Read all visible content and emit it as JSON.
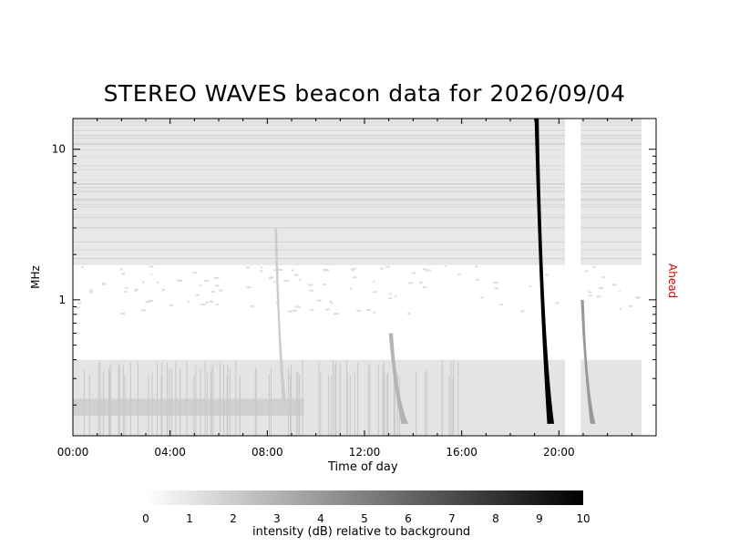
{
  "chart_data": {
    "type": "heatmap",
    "title": "STEREO WAVES beacon data for 2026/09/04",
    "xlabel": "Time of day",
    "ylabel": "MHz",
    "right_label": "Ahead",
    "right_label_color": "#cc0000",
    "x_range_hours": [
      0,
      24
    ],
    "x_ticks": [
      "00:00",
      "04:00",
      "08:00",
      "12:00",
      "16:00",
      "20:00"
    ],
    "y_scale": "log",
    "y_range_mhz": [
      0.125,
      16
    ],
    "y_ticks": [
      "1",
      "10"
    ],
    "data_gap_hours": [
      20.25,
      20.9
    ],
    "data_end_hours": 23.4,
    "bursts": [
      {
        "start_hours": 19.0,
        "end_hours": 19.8,
        "peak_db": 10,
        "freq_top_mhz": 16,
        "freq_bottom_mhz": 0.15
      },
      {
        "start_hours": 20.9,
        "end_hours": 21.5,
        "peak_db": 4,
        "freq_top_mhz": 1.0,
        "freq_bottom_mhz": 0.15
      },
      {
        "start_hours": 13.0,
        "end_hours": 13.8,
        "peak_db": 3,
        "freq_top_mhz": 0.6,
        "freq_bottom_mhz": 0.15
      },
      {
        "start_hours": 8.3,
        "end_hours": 8.8,
        "peak_db": 2,
        "freq_top_mhz": 3.0,
        "freq_bottom_mhz": 0.2
      }
    ],
    "colorbar": {
      "label": "intensity (dB) relative to background",
      "ticks": [
        "0",
        "1",
        "2",
        "3",
        "4",
        "5",
        "6",
        "7",
        "8",
        "9",
        "10"
      ],
      "range_db": [
        0,
        10
      ],
      "colormap": "white-to-black"
    }
  }
}
